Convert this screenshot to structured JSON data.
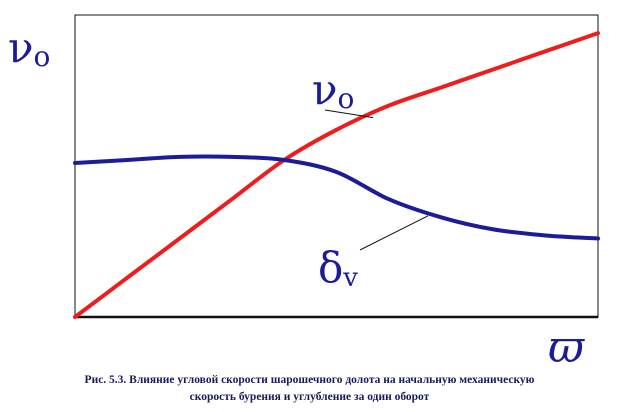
{
  "chart_data": {
    "type": "line",
    "title": "",
    "xlabel": "ω",
    "ylabel": "v₀",
    "xlim": [
      0,
      1
    ],
    "ylim": [
      0,
      1
    ],
    "grid": false,
    "legend": "none",
    "series": [
      {
        "name": "v₀",
        "color": "#ee1c1c",
        "x": [
          0.0,
          0.1,
          0.2,
          0.3,
          0.4,
          0.5,
          0.6,
          0.7,
          0.8,
          0.9,
          1.0
        ],
        "y": [
          0.0,
          0.13,
          0.26,
          0.39,
          0.52,
          0.62,
          0.7,
          0.76,
          0.82,
          0.88,
          0.94
        ]
      },
      {
        "name": "δ",
        "color": "#1c1c99",
        "x": [
          0.0,
          0.1,
          0.2,
          0.3,
          0.4,
          0.5,
          0.6,
          0.7,
          0.8,
          0.9,
          1.0
        ],
        "y": [
          0.51,
          0.52,
          0.53,
          0.53,
          0.52,
          0.48,
          0.39,
          0.33,
          0.29,
          0.27,
          0.26
        ]
      }
    ],
    "labels": {
      "v0_axis": "ν",
      "v0_axis_sub": "o",
      "v0_curve": "ν",
      "v0_curve_sub": "o",
      "delta_curve": "δ",
      "delta_curve_sub": "v",
      "x_axis": "ϖ"
    }
  },
  "caption": {
    "line1": "Рис. 5.3. Влияние угловой скорости шарошечного долота на начальную механическую",
    "line2": "скорость бурения и углубление за один оборот"
  }
}
